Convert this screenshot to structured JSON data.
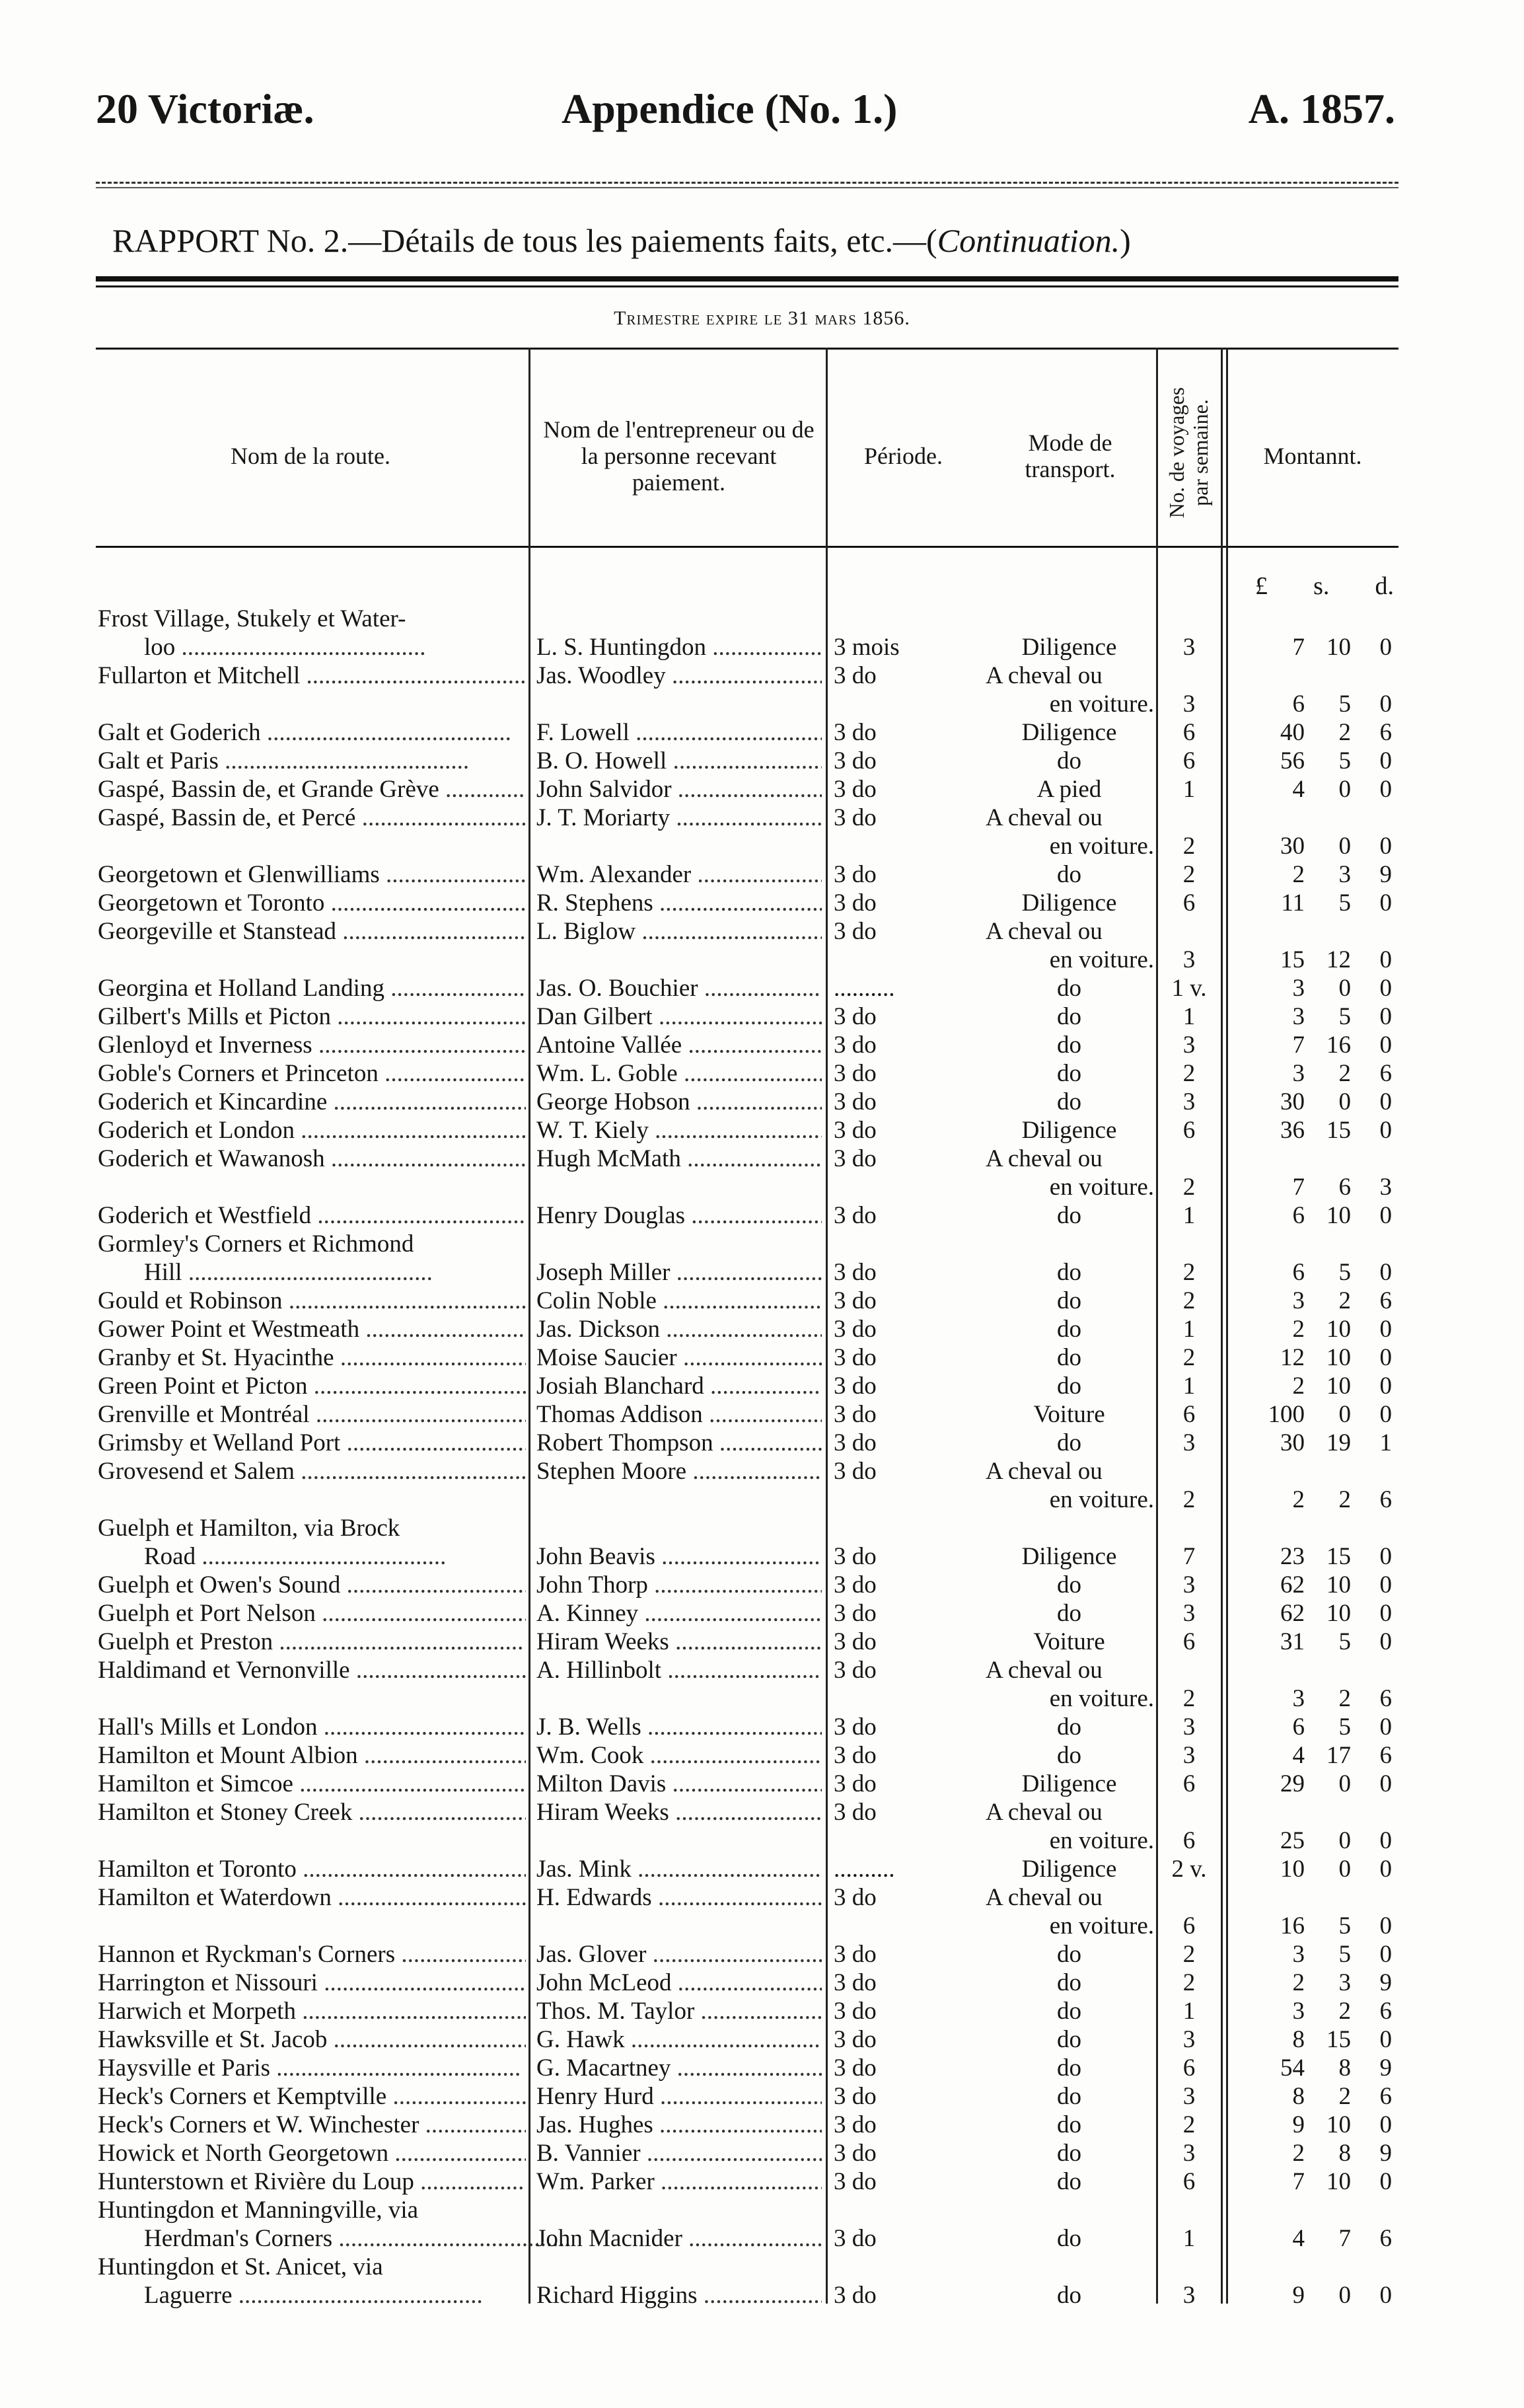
{
  "header": {
    "left": "20 Victoriæ.",
    "center": "Appendice (No. 1.)",
    "right": "A. 1857."
  },
  "title": {
    "main": "RAPPORT No. 2.—Détails de tous les paiements faits, etc.—(",
    "italic": "Continuation.",
    "close": ")"
  },
  "quarter": "Trimestre expire le 31 mars 1856.",
  "columns": {
    "route": "Nom de la route.",
    "contractor": "Nom de l'entrepreneur ou de la personne recevant paiement.",
    "period": "Période.",
    "mode": "Mode de transport.",
    "trips": "No. de voyages par semaine.",
    "amount": "Montannt."
  },
  "units": {
    "pounds": "£",
    "shillings": "s.",
    "pence": "d."
  },
  "rows": [
    {
      "route": [
        "Frost Village, Stukely et Water-",
        "loo"
      ],
      "contractor": "L. S. Huntingdon",
      "period": "3 mois",
      "mode": [
        "Diligence"
      ],
      "trips": "3",
      "amount": [
        "7",
        "10",
        "0"
      ]
    },
    {
      "route": [
        "Fullarton et Mitchell"
      ],
      "contractor": "Jas. Woodley",
      "period": "3 do",
      "mode": [
        "A cheval ou",
        "en voiture."
      ],
      "trips": "3",
      "amount": [
        "6",
        "5",
        "0"
      ]
    },
    {
      "route": [
        "Galt et Goderich"
      ],
      "contractor": "F. Lowell",
      "period": "3 do",
      "mode": [
        "Diligence"
      ],
      "trips": "6",
      "amount": [
        "40",
        "2",
        "6"
      ]
    },
    {
      "route": [
        "Galt et Paris"
      ],
      "contractor": "B. O. Howell",
      "period": "3 do",
      "mode": [
        "do"
      ],
      "trips": "6",
      "amount": [
        "56",
        "5",
        "0"
      ]
    },
    {
      "route": [
        "Gaspé, Bassin de, et Grande Grève"
      ],
      "contractor": "John Salvidor",
      "period": "3 do",
      "mode": [
        "A pied"
      ],
      "trips": "1",
      "amount": [
        "4",
        "0",
        "0"
      ]
    },
    {
      "route": [
        "Gaspé, Bassin de, et Percé"
      ],
      "contractor": "J. T. Moriarty",
      "period": "3 do",
      "mode": [
        "A cheval ou",
        "en voiture."
      ],
      "trips": "2",
      "amount": [
        "30",
        "0",
        "0"
      ]
    },
    {
      "route": [
        "Georgetown et Glenwilliams"
      ],
      "contractor": "Wm. Alexander",
      "period": "3 do",
      "mode": [
        "do"
      ],
      "trips": "2",
      "amount": [
        "2",
        "3",
        "9"
      ]
    },
    {
      "route": [
        "Georgetown et Toronto"
      ],
      "contractor": "R. Stephens",
      "period": "3 do",
      "mode": [
        "Diligence"
      ],
      "trips": "6",
      "amount": [
        "11",
        "5",
        "0"
      ]
    },
    {
      "route": [
        "Georgeville et Stanstead"
      ],
      "contractor": "L. Biglow",
      "period": "3 do",
      "mode": [
        "A cheval ou",
        "en voiture."
      ],
      "trips": "3",
      "amount": [
        "15",
        "12",
        "0"
      ]
    },
    {
      "route": [
        "Georgina et Holland Landing"
      ],
      "contractor": "Jas. O. Bouchier",
      "period": "..........",
      "mode": [
        "do"
      ],
      "trips": "1 v.",
      "amount": [
        "3",
        "0",
        "0"
      ]
    },
    {
      "route": [
        "Gilbert's Mills et Picton"
      ],
      "contractor": "Dan Gilbert",
      "period": "3 do",
      "mode": [
        "do"
      ],
      "trips": "1",
      "amount": [
        "3",
        "5",
        "0"
      ]
    },
    {
      "route": [
        "Glenloyd et Inverness"
      ],
      "contractor": "Antoine Vallée",
      "period": "3 do",
      "mode": [
        "do"
      ],
      "trips": "3",
      "amount": [
        "7",
        "16",
        "0"
      ]
    },
    {
      "route": [
        "Goble's Corners et Princeton"
      ],
      "contractor": "Wm. L. Goble",
      "period": "3 do",
      "mode": [
        "do"
      ],
      "trips": "2",
      "amount": [
        "3",
        "2",
        "6"
      ]
    },
    {
      "route": [
        "Goderich et Kincardine"
      ],
      "contractor": "George Hobson",
      "period": "3 do",
      "mode": [
        "do"
      ],
      "trips": "3",
      "amount": [
        "30",
        "0",
        "0"
      ]
    },
    {
      "route": [
        "Goderich et London"
      ],
      "contractor": "W. T. Kiely",
      "period": "3 do",
      "mode": [
        "Diligence"
      ],
      "trips": "6",
      "amount": [
        "36",
        "15",
        "0"
      ]
    },
    {
      "route": [
        "Goderich et Wawanosh"
      ],
      "contractor": "Hugh McMath",
      "period": "3 do",
      "mode": [
        "A cheval ou",
        "en voiture."
      ],
      "trips": "2",
      "amount": [
        "7",
        "6",
        "3"
      ]
    },
    {
      "route": [
        "Goderich et Westfield"
      ],
      "contractor": "Henry Douglas",
      "period": "3 do",
      "mode": [
        "do"
      ],
      "trips": "1",
      "amount": [
        "6",
        "10",
        "0"
      ]
    },
    {
      "route": [
        "Gormley's Corners et Richmond",
        "Hill"
      ],
      "contractor": "Joseph Miller",
      "period": "3 do",
      "mode": [
        "do"
      ],
      "trips": "2",
      "amount": [
        "6",
        "5",
        "0"
      ]
    },
    {
      "route": [
        "Gould et Robinson"
      ],
      "contractor": "Colin Noble",
      "period": "3 do",
      "mode": [
        "do"
      ],
      "trips": "2",
      "amount": [
        "3",
        "2",
        "6"
      ]
    },
    {
      "route": [
        "Gower Point et Westmeath"
      ],
      "contractor": "Jas. Dickson",
      "period": "3 do",
      "mode": [
        "do"
      ],
      "trips": "1",
      "amount": [
        "2",
        "10",
        "0"
      ]
    },
    {
      "route": [
        "Granby et St. Hyacinthe"
      ],
      "contractor": "Moise Saucier",
      "period": "3 do",
      "mode": [
        "do"
      ],
      "trips": "2",
      "amount": [
        "12",
        "10",
        "0"
      ]
    },
    {
      "route": [
        "Green Point et Picton"
      ],
      "contractor": "Josiah Blanchard",
      "period": "3 do",
      "mode": [
        "do"
      ],
      "trips": "1",
      "amount": [
        "2",
        "10",
        "0"
      ]
    },
    {
      "route": [
        "Grenville et Montréal"
      ],
      "contractor": "Thomas Addison",
      "period": "3 do",
      "mode": [
        "Voiture"
      ],
      "trips": "6",
      "amount": [
        "100",
        "0",
        "0"
      ]
    },
    {
      "route": [
        "Grimsby et Welland Port"
      ],
      "contractor": "Robert Thompson",
      "period": "3 do",
      "mode": [
        "do"
      ],
      "trips": "3",
      "amount": [
        "30",
        "19",
        "1"
      ]
    },
    {
      "route": [
        "Grovesend et Salem"
      ],
      "contractor": "Stephen Moore",
      "period": "3 do",
      "mode": [
        "A cheval ou",
        "en voiture."
      ],
      "trips": "2",
      "amount": [
        "2",
        "2",
        "6"
      ]
    },
    {
      "route": [
        "Guelph et Hamilton, via Brock",
        "Road"
      ],
      "contractor": "John Beavis",
      "period": "3 do",
      "mode": [
        "Diligence"
      ],
      "trips": "7",
      "amount": [
        "23",
        "15",
        "0"
      ]
    },
    {
      "route": [
        "Guelph et Owen's Sound"
      ],
      "contractor": "John Thorp",
      "period": "3 do",
      "mode": [
        "do"
      ],
      "trips": "3",
      "amount": [
        "62",
        "10",
        "0"
      ]
    },
    {
      "route": [
        "Guelph et Port Nelson"
      ],
      "contractor": "A. Kinney",
      "period": "3 do",
      "mode": [
        "do"
      ],
      "trips": "3",
      "amount": [
        "62",
        "10",
        "0"
      ]
    },
    {
      "route": [
        "Guelph et Preston"
      ],
      "contractor": "Hiram Weeks",
      "period": "3 do",
      "mode": [
        "Voiture"
      ],
      "trips": "6",
      "amount": [
        "31",
        "5",
        "0"
      ]
    },
    {
      "route": [
        "Haldimand et Vernonville"
      ],
      "contractor": "A. Hillinbolt",
      "period": "3 do",
      "mode": [
        "A cheval ou",
        "en voiture."
      ],
      "trips": "2",
      "amount": [
        "3",
        "2",
        "6"
      ]
    },
    {
      "route": [
        "Hall's Mills et London"
      ],
      "contractor": "J. B. Wells",
      "period": "3 do",
      "mode": [
        "do"
      ],
      "trips": "3",
      "amount": [
        "6",
        "5",
        "0"
      ]
    },
    {
      "route": [
        "Hamilton et Mount Albion"
      ],
      "contractor": "Wm. Cook",
      "period": "3 do",
      "mode": [
        "do"
      ],
      "trips": "3",
      "amount": [
        "4",
        "17",
        "6"
      ]
    },
    {
      "route": [
        "Hamilton et Simcoe"
      ],
      "contractor": "Milton Davis",
      "period": "3 do",
      "mode": [
        "Diligence"
      ],
      "trips": "6",
      "amount": [
        "29",
        "0",
        "0"
      ]
    },
    {
      "route": [
        "Hamilton et Stoney Creek"
      ],
      "contractor": "Hiram Weeks",
      "period": "3 do",
      "mode": [
        "A cheval ou",
        "en voiture."
      ],
      "trips": "6",
      "amount": [
        "25",
        "0",
        "0"
      ]
    },
    {
      "route": [
        "Hamilton et Toronto"
      ],
      "contractor": "Jas. Mink",
      "period": "..........",
      "mode": [
        "Diligence"
      ],
      "trips": "2 v.",
      "amount": [
        "10",
        "0",
        "0"
      ]
    },
    {
      "route": [
        "Hamilton et Waterdown"
      ],
      "contractor": "H. Edwards",
      "period": "3 do",
      "mode": [
        "A cheval ou",
        "en voiture."
      ],
      "trips": "6",
      "amount": [
        "16",
        "5",
        "0"
      ]
    },
    {
      "route": [
        "Hannon et Ryckman's Corners"
      ],
      "contractor": "Jas. Glover",
      "period": "3 do",
      "mode": [
        "do"
      ],
      "trips": "2",
      "amount": [
        "3",
        "5",
        "0"
      ]
    },
    {
      "route": [
        "Harrington et Nissouri"
      ],
      "contractor": "John McLeod",
      "period": "3 do",
      "mode": [
        "do"
      ],
      "trips": "2",
      "amount": [
        "2",
        "3",
        "9"
      ]
    },
    {
      "route": [
        "Harwich et Morpeth"
      ],
      "contractor": "Thos. M. Taylor",
      "period": "3 do",
      "mode": [
        "do"
      ],
      "trips": "1",
      "amount": [
        "3",
        "2",
        "6"
      ]
    },
    {
      "route": [
        "Hawksville et St. Jacob"
      ],
      "contractor": "G. Hawk",
      "period": "3 do",
      "mode": [
        "do"
      ],
      "trips": "3",
      "amount": [
        "8",
        "15",
        "0"
      ]
    },
    {
      "route": [
        "Haysville et Paris"
      ],
      "contractor": "G. Macartney",
      "period": "3 do",
      "mode": [
        "do"
      ],
      "trips": "6",
      "amount": [
        "54",
        "8",
        "9"
      ]
    },
    {
      "route": [
        "Heck's Corners et Kemptville"
      ],
      "contractor": "Henry Hurd",
      "period": "3 do",
      "mode": [
        "do"
      ],
      "trips": "3",
      "amount": [
        "8",
        "2",
        "6"
      ]
    },
    {
      "route": [
        "Heck's Corners et W. Winchester"
      ],
      "contractor": "Jas. Hughes",
      "period": "3 do",
      "mode": [
        "do"
      ],
      "trips": "2",
      "amount": [
        "9",
        "10",
        "0"
      ]
    },
    {
      "route": [
        "Howick et North Georgetown"
      ],
      "contractor": "B. Vannier",
      "period": "3 do",
      "mode": [
        "do"
      ],
      "trips": "3",
      "amount": [
        "2",
        "8",
        "9"
      ]
    },
    {
      "route": [
        "Hunterstown et Rivière du Loup"
      ],
      "contractor": "Wm. Parker",
      "period": "3 do",
      "mode": [
        "do"
      ],
      "trips": "6",
      "amount": [
        "7",
        "10",
        "0"
      ]
    },
    {
      "route": [
        "Huntingdon et Manningville, via",
        "Herdman's Corners"
      ],
      "contractor": "John Macnider",
      "period": "3 do",
      "mode": [
        "do"
      ],
      "trips": "1",
      "amount": [
        "4",
        "7",
        "6"
      ]
    },
    {
      "route": [
        "Huntingdon et St. Anicet, via",
        "Laguerre"
      ],
      "contractor": "Richard Higgins",
      "period": "3 do",
      "mode": [
        "do"
      ],
      "trips": "3",
      "amount": [
        "9",
        "0",
        "0"
      ]
    }
  ]
}
